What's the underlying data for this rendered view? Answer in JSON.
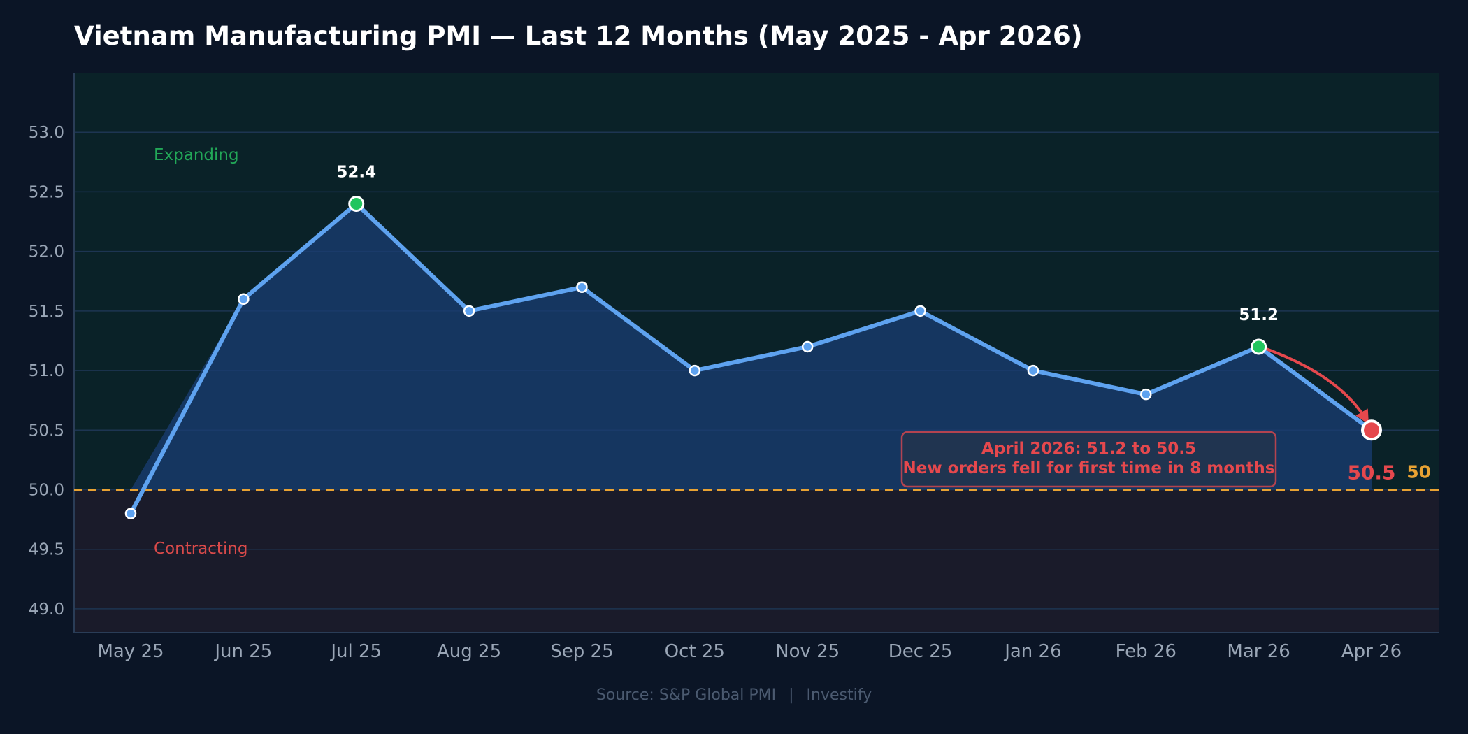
{
  "title": "Vietnam Manufacturing PMI — Last 12 Months (May 2025 - Apr 2026)",
  "source": {
    "text": "Source: S&P Global PMI",
    "separator": "|",
    "brand": "Investify"
  },
  "colors": {
    "background": "#0b1526",
    "expanding_zone": "#0a2228",
    "contracting_zone": "#1a1b2a",
    "line": "#5ea2ef",
    "area_fill": "#1a3d73",
    "grid": "#1d3552",
    "axis_text": "#9aa6b6",
    "threshold": "#e8a233",
    "expanding_label": "#22a858",
    "contracting_label": "#d94a4a",
    "highlight_green": "#22c55e",
    "highlight_red": "#e5484d",
    "annotation_box_fill": "#21344f",
    "annotation_text": "#e5484d"
  },
  "chart_data": {
    "type": "line",
    "categories": [
      "May 25",
      "Jun 25",
      "Jul 25",
      "Aug 25",
      "Sep 25",
      "Oct 25",
      "Nov 25",
      "Dec 25",
      "Jan 26",
      "Feb 26",
      "Mar 26",
      "Apr 26"
    ],
    "series": [
      {
        "values": [
          49.8,
          51.6,
          52.4,
          51.5,
          51.7,
          51.0,
          51.2,
          51.5,
          51.0,
          50.8,
          51.2,
          50.5
        ]
      }
    ],
    "ylim": [
      48.8,
      53.5
    ],
    "yticks": [
      49.0,
      49.5,
      50.0,
      50.5,
      51.0,
      51.5,
      52.0,
      52.5,
      53.0
    ],
    "ytick_labels": [
      "49.0",
      "49.5",
      "50.0",
      "50.5",
      "51.0",
      "51.5",
      "52.0",
      "52.5",
      "53.0"
    ],
    "grid": true,
    "threshold": {
      "value": 50,
      "label": "50",
      "style": "dashed"
    },
    "zones": {
      "above_label": "Expanding",
      "below_label": "Contracting"
    },
    "highlights": [
      {
        "category": "Jul 25",
        "label": "52.4",
        "color": "green"
      },
      {
        "category": "Mar 26",
        "label": "51.2",
        "color": "green"
      },
      {
        "category": "Apr 26",
        "label": "50.5",
        "color": "red"
      }
    ],
    "annotation": {
      "line1": "April 2026: 51.2 to 50.5",
      "line2": "New orders fell for first time in 8 months",
      "arrow_from": "Mar 26",
      "arrow_to": "Apr 26"
    }
  }
}
